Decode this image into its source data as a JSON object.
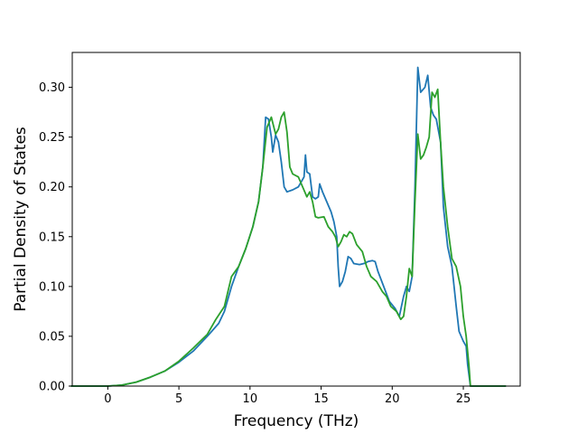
{
  "chart_data": {
    "type": "line",
    "title": "",
    "xlabel": "Frequency (THz)",
    "ylabel": "Partial Density of States",
    "xlim": [
      -2.5,
      29.0
    ],
    "ylim": [
      0.0,
      0.335
    ],
    "xticks": [
      0,
      5,
      10,
      15,
      20,
      25
    ],
    "yticks": [
      0.0,
      0.05,
      0.1,
      0.15,
      0.2,
      0.25,
      0.3
    ],
    "xtick_labels": [
      "0",
      "5",
      "10",
      "15",
      "20",
      "25"
    ],
    "ytick_labels": [
      "0.00",
      "0.05",
      "0.10",
      "0.15",
      "0.20",
      "0.25",
      "0.30"
    ],
    "grid": false,
    "legend": "none",
    "series": [
      {
        "color": "#1f77b4",
        "points": [
          [
            -2.6,
            0.0
          ],
          [
            0.0,
            0.0
          ],
          [
            1.0,
            0.001
          ],
          [
            2.0,
            0.004
          ],
          [
            3.0,
            0.009
          ],
          [
            4.0,
            0.015
          ],
          [
            5.0,
            0.024
          ],
          [
            6.0,
            0.035
          ],
          [
            7.0,
            0.05
          ],
          [
            7.8,
            0.063
          ],
          [
            8.2,
            0.075
          ],
          [
            8.7,
            0.1
          ],
          [
            9.2,
            0.12
          ],
          [
            9.7,
            0.138
          ],
          [
            10.2,
            0.16
          ],
          [
            10.6,
            0.185
          ],
          [
            10.9,
            0.22
          ],
          [
            11.1,
            0.27
          ],
          [
            11.3,
            0.268
          ],
          [
            11.5,
            0.25
          ],
          [
            11.6,
            0.235
          ],
          [
            11.8,
            0.252
          ],
          [
            12.0,
            0.245
          ],
          [
            12.2,
            0.225
          ],
          [
            12.4,
            0.2
          ],
          [
            12.6,
            0.195
          ],
          [
            13.0,
            0.197
          ],
          [
            13.4,
            0.2
          ],
          [
            13.6,
            0.205
          ],
          [
            13.8,
            0.21
          ],
          [
            13.9,
            0.232
          ],
          [
            14.0,
            0.215
          ],
          [
            14.2,
            0.213
          ],
          [
            14.4,
            0.19
          ],
          [
            14.6,
            0.188
          ],
          [
            14.8,
            0.19
          ],
          [
            14.9,
            0.203
          ],
          [
            15.1,
            0.195
          ],
          [
            15.4,
            0.185
          ],
          [
            15.7,
            0.175
          ],
          [
            15.9,
            0.165
          ],
          [
            16.1,
            0.15
          ],
          [
            16.2,
            0.12
          ],
          [
            16.3,
            0.1
          ],
          [
            16.5,
            0.105
          ],
          [
            16.7,
            0.115
          ],
          [
            16.9,
            0.13
          ],
          [
            17.1,
            0.128
          ],
          [
            17.3,
            0.123
          ],
          [
            17.7,
            0.122
          ],
          [
            18.0,
            0.123
          ],
          [
            18.3,
            0.125
          ],
          [
            18.6,
            0.126
          ],
          [
            18.8,
            0.125
          ],
          [
            19.0,
            0.115
          ],
          [
            19.4,
            0.1
          ],
          [
            19.8,
            0.085
          ],
          [
            20.2,
            0.078
          ],
          [
            20.5,
            0.07
          ],
          [
            20.8,
            0.09
          ],
          [
            21.0,
            0.1
          ],
          [
            21.2,
            0.095
          ],
          [
            21.4,
            0.11
          ],
          [
            21.6,
            0.2
          ],
          [
            21.8,
            0.32
          ],
          [
            22.0,
            0.295
          ],
          [
            22.3,
            0.3
          ],
          [
            22.5,
            0.312
          ],
          [
            22.7,
            0.28
          ],
          [
            22.9,
            0.272
          ],
          [
            23.1,
            0.268
          ],
          [
            23.4,
            0.245
          ],
          [
            23.6,
            0.18
          ],
          [
            23.9,
            0.14
          ],
          [
            24.2,
            0.12
          ],
          [
            24.5,
            0.08
          ],
          [
            24.7,
            0.055
          ],
          [
            25.0,
            0.045
          ],
          [
            25.2,
            0.04
          ],
          [
            25.3,
            0.022
          ],
          [
            25.5,
            0.0
          ],
          [
            26.0,
            0.0
          ],
          [
            28.0,
            0.0
          ]
        ]
      },
      {
        "color": "#2ca02c",
        "points": [
          [
            -2.6,
            0.0
          ],
          [
            0.0,
            0.0
          ],
          [
            1.0,
            0.001
          ],
          [
            2.0,
            0.004
          ],
          [
            3.0,
            0.009
          ],
          [
            4.0,
            0.015
          ],
          [
            5.0,
            0.025
          ],
          [
            6.0,
            0.038
          ],
          [
            7.0,
            0.052
          ],
          [
            7.6,
            0.067
          ],
          [
            8.2,
            0.08
          ],
          [
            8.7,
            0.11
          ],
          [
            9.2,
            0.12
          ],
          [
            9.7,
            0.138
          ],
          [
            10.2,
            0.16
          ],
          [
            10.6,
            0.185
          ],
          [
            10.9,
            0.22
          ],
          [
            11.2,
            0.26
          ],
          [
            11.5,
            0.27
          ],
          [
            11.8,
            0.253
          ],
          [
            12.0,
            0.258
          ],
          [
            12.2,
            0.27
          ],
          [
            12.4,
            0.275
          ],
          [
            12.6,
            0.255
          ],
          [
            12.8,
            0.22
          ],
          [
            13.0,
            0.213
          ],
          [
            13.4,
            0.21
          ],
          [
            13.7,
            0.2
          ],
          [
            14.0,
            0.19
          ],
          [
            14.2,
            0.195
          ],
          [
            14.4,
            0.185
          ],
          [
            14.6,
            0.17
          ],
          [
            14.8,
            0.169
          ],
          [
            15.2,
            0.17
          ],
          [
            15.5,
            0.16
          ],
          [
            15.8,
            0.155
          ],
          [
            16.0,
            0.15
          ],
          [
            16.2,
            0.14
          ],
          [
            16.4,
            0.145
          ],
          [
            16.6,
            0.152
          ],
          [
            16.8,
            0.15
          ],
          [
            17.0,
            0.155
          ],
          [
            17.2,
            0.153
          ],
          [
            17.5,
            0.142
          ],
          [
            17.9,
            0.135
          ],
          [
            18.2,
            0.12
          ],
          [
            18.5,
            0.11
          ],
          [
            18.9,
            0.105
          ],
          [
            19.3,
            0.095
          ],
          [
            19.6,
            0.09
          ],
          [
            19.9,
            0.08
          ],
          [
            20.3,
            0.075
          ],
          [
            20.6,
            0.067
          ],
          [
            20.8,
            0.07
          ],
          [
            21.0,
            0.09
          ],
          [
            21.2,
            0.118
          ],
          [
            21.4,
            0.11
          ],
          [
            21.6,
            0.185
          ],
          [
            21.8,
            0.253
          ],
          [
            22.0,
            0.228
          ],
          [
            22.2,
            0.232
          ],
          [
            22.4,
            0.24
          ],
          [
            22.6,
            0.25
          ],
          [
            22.8,
            0.295
          ],
          [
            23.0,
            0.29
          ],
          [
            23.2,
            0.298
          ],
          [
            23.4,
            0.245
          ],
          [
            23.6,
            0.2
          ],
          [
            23.9,
            0.16
          ],
          [
            24.2,
            0.128
          ],
          [
            24.5,
            0.12
          ],
          [
            24.8,
            0.1
          ],
          [
            25.0,
            0.07
          ],
          [
            25.2,
            0.05
          ],
          [
            25.4,
            0.02
          ],
          [
            25.5,
            0.0
          ],
          [
            26.0,
            0.0
          ],
          [
            28.0,
            0.0
          ]
        ]
      }
    ]
  }
}
